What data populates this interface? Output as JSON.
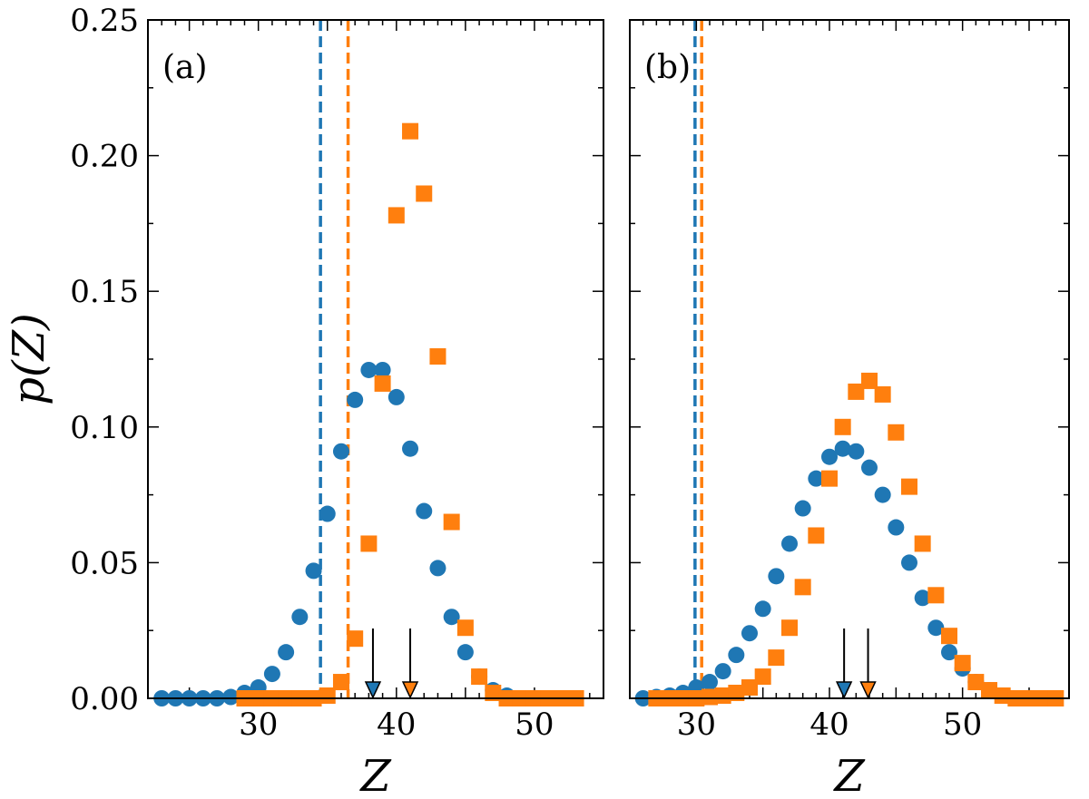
{
  "figure": {
    "ylabel": "p(Z)",
    "colors": {
      "blue": "#1f77b4",
      "orange": "#ff7f0e",
      "arrow": "#000000"
    }
  },
  "chart_data": [
    {
      "type": "scatter",
      "panel_label": "(a)",
      "xlabel": "Z",
      "ylabel": "p(Z)",
      "xlim": [
        22,
        55
      ],
      "ylim": [
        0,
        0.25
      ],
      "xticks": [
        30,
        40,
        50
      ],
      "yticks": [
        0.0,
        0.05,
        0.1,
        0.15,
        0.2,
        0.25
      ],
      "ytick_labels": [
        "0.00",
        "0.05",
        "0.10",
        "0.15",
        "0.20",
        "0.25"
      ],
      "grid": false,
      "series": [
        {
          "color": "#1f77b4",
          "marker": "circle",
          "x": [
            23,
            24,
            25,
            26,
            27,
            28,
            29,
            30,
            31,
            32,
            33,
            34,
            35,
            36,
            37,
            38,
            39,
            40,
            41,
            42,
            43,
            44,
            45,
            46,
            47,
            48,
            49
          ],
          "y": [
            0.0,
            0.0,
            0.0,
            0.0,
            0.0,
            0.0005,
            0.002,
            0.004,
            0.009,
            0.017,
            0.03,
            0.047,
            0.068,
            0.091,
            0.11,
            0.121,
            0.121,
            0.111,
            0.092,
            0.069,
            0.048,
            0.03,
            0.017,
            0.008,
            0.003,
            0.001,
            0.0
          ]
        },
        {
          "color": "#ff7f0e",
          "marker": "square",
          "x": [
            29,
            30,
            31,
            32,
            33,
            34,
            35,
            36,
            37,
            38,
            39,
            40,
            41,
            42,
            43,
            44,
            45,
            46,
            47,
            48,
            49,
            50,
            51,
            52,
            53
          ],
          "y": [
            0.0,
            0.0,
            0.0,
            0.0,
            0.0,
            0.0,
            0.001,
            0.006,
            0.022,
            0.057,
            0.116,
            0.178,
            0.209,
            0.186,
            0.126,
            0.065,
            0.026,
            0.008,
            0.002,
            0.0,
            0.0,
            0.0,
            0.0,
            0.0,
            0.0
          ]
        }
      ],
      "vlines": [
        {
          "x": 34.5,
          "color": "#1f77b4",
          "style": "dashed"
        },
        {
          "x": 36.5,
          "color": "#ff7f0e",
          "style": "dashed"
        }
      ],
      "arrows": [
        {
          "x": 38.3,
          "color": "#1f77b4"
        },
        {
          "x": 41.0,
          "color": "#ff7f0e"
        }
      ]
    },
    {
      "type": "scatter",
      "panel_label": "(b)",
      "xlabel": "Z",
      "xlim": [
        25,
        58
      ],
      "ylim": [
        0,
        0.25
      ],
      "xticks": [
        30,
        40,
        50
      ],
      "grid": false,
      "series": [
        {
          "color": "#1f77b4",
          "marker": "circle",
          "x": [
            26,
            27,
            28,
            29,
            30,
            31,
            32,
            33,
            34,
            35,
            36,
            37,
            38,
            39,
            40,
            41,
            42,
            43,
            44,
            45,
            46,
            47,
            48,
            49,
            50,
            51,
            52,
            53,
            54,
            55
          ],
          "y": [
            0.0,
            0.0005,
            0.001,
            0.002,
            0.004,
            0.006,
            0.01,
            0.016,
            0.024,
            0.033,
            0.045,
            0.057,
            0.07,
            0.081,
            0.089,
            0.092,
            0.091,
            0.085,
            0.075,
            0.063,
            0.05,
            0.037,
            0.026,
            0.017,
            0.011,
            0.006,
            0.003,
            0.001,
            0.0,
            0.0
          ]
        },
        {
          "color": "#ff7f0e",
          "marker": "square",
          "x": [
            27,
            28,
            29,
            30,
            31,
            32,
            33,
            34,
            35,
            36,
            37,
            38,
            39,
            40,
            41,
            42,
            43,
            44,
            45,
            46,
            47,
            48,
            49,
            50,
            51,
            52,
            53,
            54,
            55,
            56,
            57
          ],
          "y": [
            0.0,
            0.0,
            0.0,
            0.0,
            0.0005,
            0.001,
            0.002,
            0.004,
            0.008,
            0.015,
            0.026,
            0.041,
            0.06,
            0.081,
            0.1,
            0.113,
            0.117,
            0.112,
            0.098,
            0.078,
            0.057,
            0.038,
            0.023,
            0.013,
            0.006,
            0.003,
            0.001,
            0.0,
            0.0,
            0.0,
            0.0
          ]
        }
      ],
      "vlines": [
        {
          "x": 29.9,
          "color": "#1f77b4",
          "style": "dashed"
        },
        {
          "x": 30.4,
          "color": "#ff7f0e",
          "style": "dashed"
        }
      ],
      "arrows": [
        {
          "x": 41.1,
          "color": "#1f77b4"
        },
        {
          "x": 42.9,
          "color": "#ff7f0e"
        }
      ]
    }
  ]
}
